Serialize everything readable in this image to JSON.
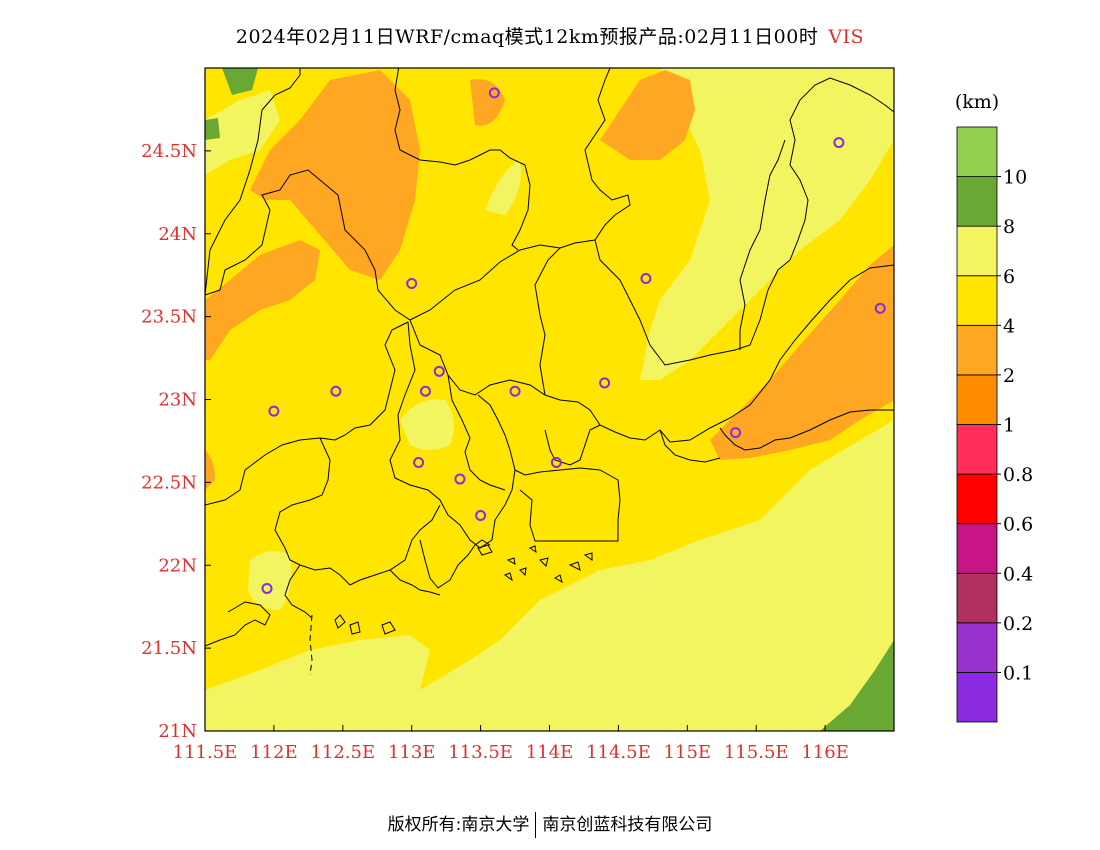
{
  "header": {
    "title": "2024年02月11日WRF/cmaq模式12km预报产品:02月11日00时",
    "variable": "VIS"
  },
  "map": {
    "x_ticks": [
      "111.5E",
      "112E",
      "112.5E",
      "113E",
      "113.5E",
      "114E",
      "114.5E",
      "115E",
      "115.5E",
      "116E"
    ],
    "y_ticks": [
      "24.5N",
      "24N",
      "23.5N",
      "23N",
      "22.5N",
      "22N",
      "21.5N",
      "21N"
    ],
    "stations": [
      {
        "lon": 113.6,
        "lat": 24.85
      },
      {
        "lon": 116.1,
        "lat": 24.55
      },
      {
        "lon": 113.0,
        "lat": 23.7
      },
      {
        "lon": 114.7,
        "lat": 23.73
      },
      {
        "lon": 116.4,
        "lat": 23.55
      },
      {
        "lon": 113.2,
        "lat": 23.17
      },
      {
        "lon": 112.45,
        "lat": 23.05
      },
      {
        "lon": 113.1,
        "lat": 23.05
      },
      {
        "lon": 113.75,
        "lat": 23.05
      },
      {
        "lon": 114.4,
        "lat": 23.1
      },
      {
        "lon": 112.0,
        "lat": 22.93
      },
      {
        "lon": 115.35,
        "lat": 22.8
      },
      {
        "lon": 113.05,
        "lat": 22.62
      },
      {
        "lon": 114.05,
        "lat": 22.62
      },
      {
        "lon": 113.35,
        "lat": 22.52
      },
      {
        "lon": 113.5,
        "lat": 22.3
      },
      {
        "lon": 111.95,
        "lat": 21.86
      }
    ]
  },
  "legend": {
    "unit": "(km)",
    "colors": [
      "#8a2be2",
      "#9932cc",
      "#b03060",
      "#c71585",
      "#ff0000",
      "#ff2e5a",
      "#ff8c00",
      "#ffa623",
      "#ffe500",
      "#f2f560",
      "#6aa834",
      "#92d050"
    ],
    "labels": [
      "0.1",
      "0.2",
      "0.4",
      "0.6",
      "0.8",
      "1",
      "2",
      "4",
      "6",
      "8",
      "10"
    ]
  },
  "footer": {
    "left": "版权所有:南京大学",
    "right": "南京创蓝科技有限公司"
  }
}
